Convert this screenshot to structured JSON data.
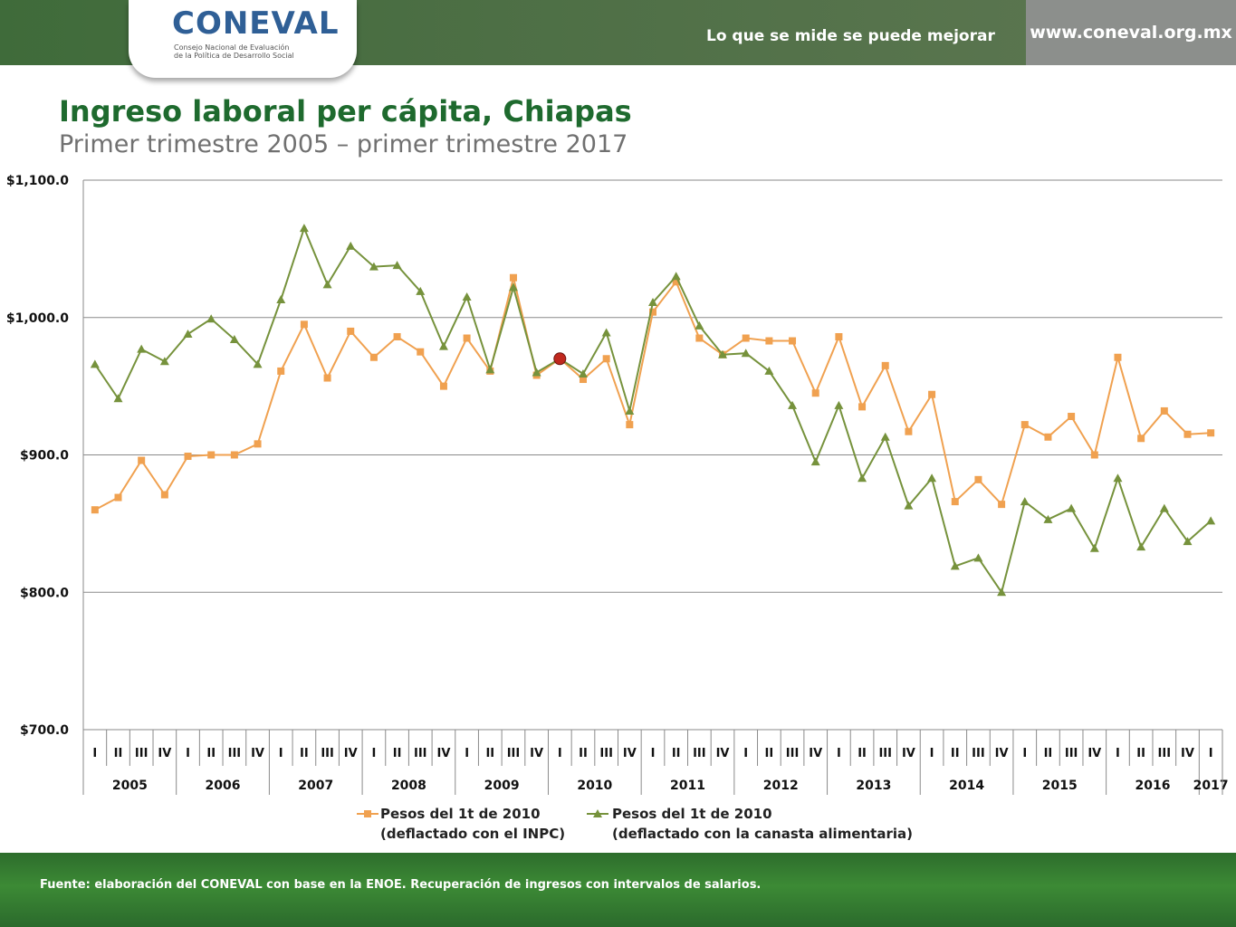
{
  "header": {
    "logo_word": "CONEVAL",
    "logo_sub_1": "Consejo Nacional de Evaluación",
    "logo_sub_2": "de la Política de Desarrollo Social",
    "slogan": "Lo que se mide se puede mejorar",
    "url": "www.coneval.org.mx"
  },
  "colors": {
    "inpc": "#f0a150",
    "canasta": "#76923c",
    "title": "#1e6a2e",
    "marker_2010": "#c0281e"
  },
  "chart_data": {
    "type": "line",
    "title": "Ingreso laboral per cápita, Chiapas",
    "subtitle": "Primer trimestre 2005 – primer trimestre 2017",
    "ylim": [
      700,
      1100
    ],
    "y_ticks": [
      "$700.0",
      "$800.0",
      "$900.0",
      "$1,000.0",
      "$1,100.0"
    ],
    "y_tick_values": [
      700,
      800,
      900,
      1000,
      1100
    ],
    "quarters": [
      "I",
      "II",
      "III",
      "IV",
      "I",
      "II",
      "III",
      "IV",
      "I",
      "II",
      "III",
      "IV",
      "I",
      "II",
      "III",
      "IV",
      "I",
      "II",
      "III",
      "IV",
      "I",
      "II",
      "III",
      "IV",
      "I",
      "II",
      "III",
      "IV",
      "I",
      "II",
      "III",
      "IV",
      "I",
      "II",
      "III",
      "IV",
      "I",
      "II",
      "III",
      "IV",
      "I",
      "II",
      "III",
      "IV",
      "I",
      "II",
      "III",
      "IV",
      "I"
    ],
    "years": [
      "2005",
      "2006",
      "2007",
      "2008",
      "2009",
      "2010",
      "2011",
      "2012",
      "2013",
      "2014",
      "2015",
      "2016",
      "2017"
    ],
    "grid": "horizontal",
    "legend_position": "bottom",
    "series": [
      {
        "name_line1": "Pesos del 1t de 2010",
        "name_line2": "(deflactado con el INPC)",
        "marker": "square",
        "values": [
          860,
          869,
          896,
          871,
          899,
          900,
          900,
          908,
          961,
          995,
          956,
          990,
          971,
          986,
          975,
          950,
          985,
          961,
          1029,
          958,
          970,
          955,
          970,
          922,
          1004,
          1026,
          985,
          973,
          985,
          983,
          983,
          945,
          986,
          935,
          965,
          917,
          944,
          866,
          882,
          864,
          922,
          913,
          928,
          900,
          971,
          912,
          932,
          915,
          916
        ]
      },
      {
        "name_line1": "Pesos del 1t de 2010",
        "name_line2": "(deflactado con la canasta alimentaria)",
        "marker": "triangle",
        "values": [
          966,
          941,
          977,
          968,
          988,
          999,
          984,
          966,
          1013,
          1065,
          1024,
          1052,
          1037,
          1038,
          1019,
          979,
          1015,
          962,
          1022,
          960,
          970,
          959,
          989,
          932,
          1011,
          1030,
          994,
          973,
          974,
          961,
          936,
          895,
          936,
          883,
          913,
          863,
          883,
          819,
          825,
          800,
          866,
          853,
          861,
          832,
          883,
          833,
          861,
          837,
          852
        ]
      }
    ],
    "highlight_point": {
      "index": 20,
      "value": 970
    }
  },
  "footer": {
    "source": "Fuente: elaboración del CONEVAL con base en la ENOE. Recuperación de ingresos con intervalos de salarios."
  }
}
